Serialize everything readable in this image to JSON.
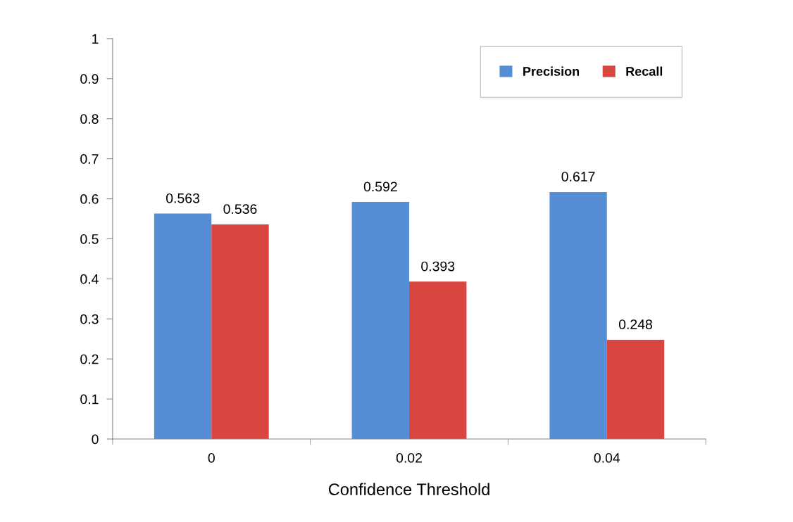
{
  "chart_data": {
    "type": "bar",
    "xlabel": "Confidence Threshold",
    "categories": [
      "0",
      "0.02",
      "0.04"
    ],
    "series": [
      {
        "name": "Precision",
        "color": "#558ed5",
        "values": [
          0.563,
          0.592,
          0.617
        ]
      },
      {
        "name": "Recall",
        "color": "#d94541",
        "values": [
          0.536,
          0.393,
          0.248
        ]
      }
    ],
    "ylim": [
      0,
      1
    ],
    "yticks": [
      0,
      0.1,
      0.2,
      0.3,
      0.4,
      0.5,
      0.6,
      0.7,
      0.8,
      0.9,
      1
    ],
    "data_labels": true,
    "legend": "top right",
    "grid": false
  }
}
